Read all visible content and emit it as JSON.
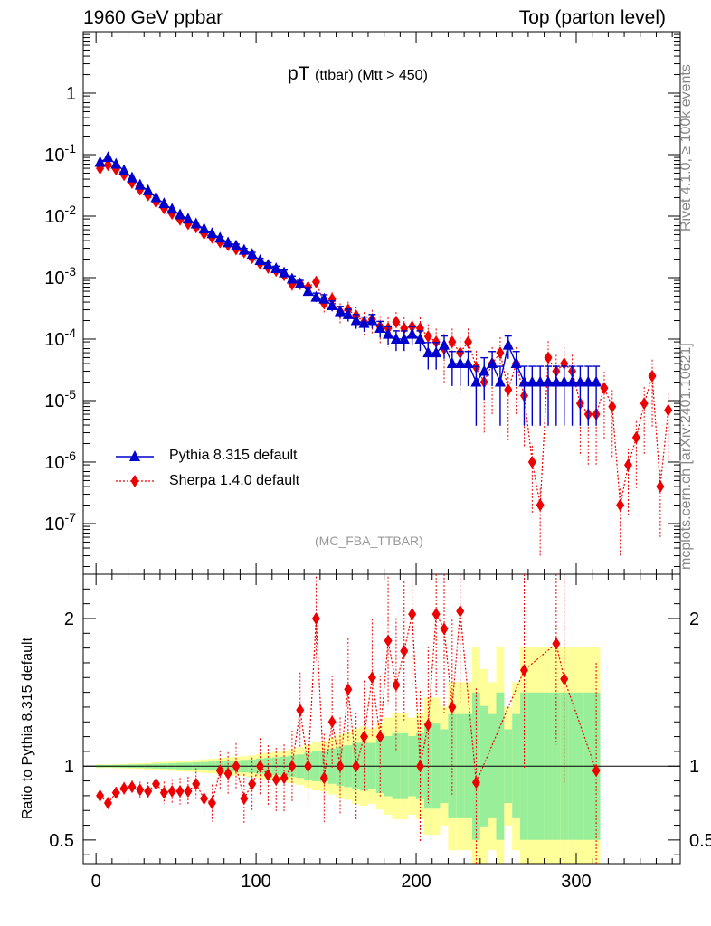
{
  "header": {
    "left": "1960 GeV ppbar",
    "right": "Top (parton level)"
  },
  "side_labels": {
    "rivet": "Rivet 4.1.0, ≥ 100k events",
    "mcplots": "mcplots.cern.ch [arXiv:2401.10621]"
  },
  "chart_data": {
    "type": "scatter",
    "title": "pT",
    "title_sub": "(ttbar) (Mtt > 450)",
    "watermark": "(MC_FBA_TTBAR)",
    "xlabel": "",
    "ylabel_ratio": "Ratio to Pythia 8.315 default",
    "xlim": [
      -8,
      365
    ],
    "ylim_main": [
      1.5e-08,
      10
    ],
    "ylim_ratio": [
      0.34,
      2.3
    ],
    "x_ticks": [
      "0",
      "100",
      "200",
      "300"
    ],
    "y_ticks_main": [
      "1",
      "10^-1",
      "10^-2",
      "10^-3",
      "10^-4",
      "10^-5",
      "10^-6",
      "10^-7"
    ],
    "y_ticks_ratio": [
      "0.5",
      "1",
      "2"
    ],
    "legend": [
      {
        "name": "Pythia 8.315 default",
        "color": "#0000cc",
        "marker": "triangle",
        "line": "solid"
      },
      {
        "name": "Sherpa 1.4.0 default",
        "color": "#ee0000",
        "marker": "diamond",
        "line": "dotted"
      }
    ],
    "bands": {
      "outer": "#ffff99",
      "inner": "#99ee99"
    },
    "series": [
      {
        "name": "Pythia 8.315 default",
        "x": [
          2.5,
          7.5,
          12.5,
          17.5,
          22.5,
          27.5,
          32.5,
          37.5,
          42.5,
          47.5,
          52.5,
          57.5,
          62.5,
          67.5,
          72.5,
          77.5,
          82.5,
          87.5,
          92.5,
          97.5,
          102.5,
          107.5,
          112.5,
          117.5,
          122.5,
          127.5,
          132.5,
          137.5,
          142.5,
          147.5,
          152.5,
          157.5,
          162.5,
          167.5,
          172.5,
          177.5,
          182.5,
          187.5,
          192.5,
          197.5,
          202.5,
          207.5,
          212.5,
          217.5,
          222.5,
          227.5,
          232.5,
          237.5,
          242.5,
          247.5,
          252.5,
          257.5,
          262.5,
          267.5,
          272.5,
          277.5,
          282.5,
          287.5,
          292.5,
          297.5,
          302.5,
          307.5,
          312.5
        ],
        "y": [
          0.075,
          0.09,
          0.07,
          0.055,
          0.042,
          0.032,
          0.026,
          0.02,
          0.016,
          0.013,
          0.0105,
          0.009,
          0.0075,
          0.0062,
          0.0052,
          0.0044,
          0.0037,
          0.0033,
          0.0028,
          0.0024,
          0.0019,
          0.0016,
          0.0014,
          0.0012,
          0.00095,
          0.0008,
          0.0006,
          0.00048,
          0.00045,
          0.00035,
          0.00028,
          0.00025,
          0.0002,
          0.00018,
          0.0002,
          0.00015,
          0.00012,
          0.0001,
          0.0001,
          0.00012,
          0.0001,
          6e-05,
          6e-05,
          8e-05,
          4e-05,
          4e-05,
          4e-05,
          2e-05,
          3e-05,
          4e-05,
          2e-05,
          8e-05,
          4e-05,
          2e-05,
          2e-05,
          2e-05,
          2e-05,
          2e-05,
          2e-05,
          2e-05,
          2e-05,
          2e-05,
          2e-05
        ]
      },
      {
        "name": "Sherpa 1.4.0 default",
        "x": [
          2.5,
          7.5,
          12.5,
          17.5,
          22.5,
          27.5,
          32.5,
          37.5,
          42.5,
          47.5,
          52.5,
          57.5,
          62.5,
          67.5,
          72.5,
          77.5,
          82.5,
          87.5,
          92.5,
          97.5,
          102.5,
          107.5,
          112.5,
          117.5,
          122.5,
          127.5,
          132.5,
          137.5,
          142.5,
          147.5,
          152.5,
          157.5,
          162.5,
          167.5,
          172.5,
          177.5,
          182.5,
          187.5,
          192.5,
          197.5,
          202.5,
          207.5,
          212.5,
          217.5,
          222.5,
          227.5,
          232.5,
          237.5,
          242.5,
          247.5,
          252.5,
          257.5,
          262.5,
          267.5,
          272.5,
          277.5,
          282.5,
          287.5,
          292.5,
          297.5,
          302.5,
          307.5,
          312.5,
          317.5,
          322.5,
          327.5,
          332.5,
          337.5,
          342.5,
          347.5,
          352.5,
          357.5
        ],
        "y": [
          0.06,
          0.068,
          0.058,
          0.047,
          0.035,
          0.027,
          0.022,
          0.017,
          0.0135,
          0.011,
          0.0088,
          0.0075,
          0.0066,
          0.0052,
          0.0045,
          0.0038,
          0.0034,
          0.0029,
          0.0026,
          0.0021,
          0.0017,
          0.00145,
          0.0013,
          0.0011,
          0.00078,
          0.0008,
          0.0007,
          0.00085,
          0.00038,
          0.00045,
          0.00028,
          0.0003,
          0.00024,
          0.00019,
          0.00021,
          0.00016,
          0.00015,
          0.00019,
          0.00015,
          0.00016,
          0.00015,
          0.00011,
          9e-05,
          7e-05,
          9e-05,
          6e-05,
          9e-05,
          3.5e-05,
          2e-05,
          4e-05,
          6e-05,
          1.5e-05,
          4e-05,
          1.2e-05,
          1e-06,
          2e-07,
          5e-05,
          3e-05,
          4e-05,
          3e-05,
          9e-06,
          6e-06,
          6e-06,
          1.6e-05,
          8e-06,
          2e-07,
          9e-07,
          2.5e-06,
          9e-06,
          2.5e-05,
          4e-07,
          7e-06
        ]
      }
    ],
    "ratio": {
      "x": [
        2.5,
        7.5,
        12.5,
        17.5,
        22.5,
        27.5,
        32.5,
        37.5,
        42.5,
        47.5,
        52.5,
        57.5,
        62.5,
        67.5,
        72.5,
        77.5,
        82.5,
        87.5,
        92.5,
        97.5,
        102.5,
        107.5,
        112.5,
        117.5,
        122.5,
        127.5,
        132.5,
        137.5,
        142.5,
        147.5,
        152.5,
        157.5,
        162.5,
        167.5,
        172.5,
        177.5,
        182.5,
        187.5,
        192.5,
        197.5,
        202.5,
        207.5,
        212.5,
        217.5,
        222.5,
        227.5,
        237.5,
        267.5,
        287.5,
        292.5,
        312.5
      ],
      "y": [
        0.8,
        0.75,
        0.82,
        0.85,
        0.86,
        0.84,
        0.83,
        0.88,
        0.82,
        0.83,
        0.83,
        0.83,
        0.88,
        0.78,
        0.75,
        0.97,
        0.95,
        1.0,
        0.78,
        0.88,
        1.0,
        0.94,
        0.91,
        0.92,
        1.0,
        1.38,
        1.0,
        2.0,
        0.92,
        1.3,
        1.0,
        1.52,
        1.0,
        1.2,
        1.6,
        1.2,
        1.85,
        1.55,
        1.78,
        2.03,
        1.0,
        1.28,
        2.03,
        1.93,
        1.4,
        2.05,
        0.89,
        1.65,
        1.83,
        1.59,
        0.97
      ]
    }
  }
}
